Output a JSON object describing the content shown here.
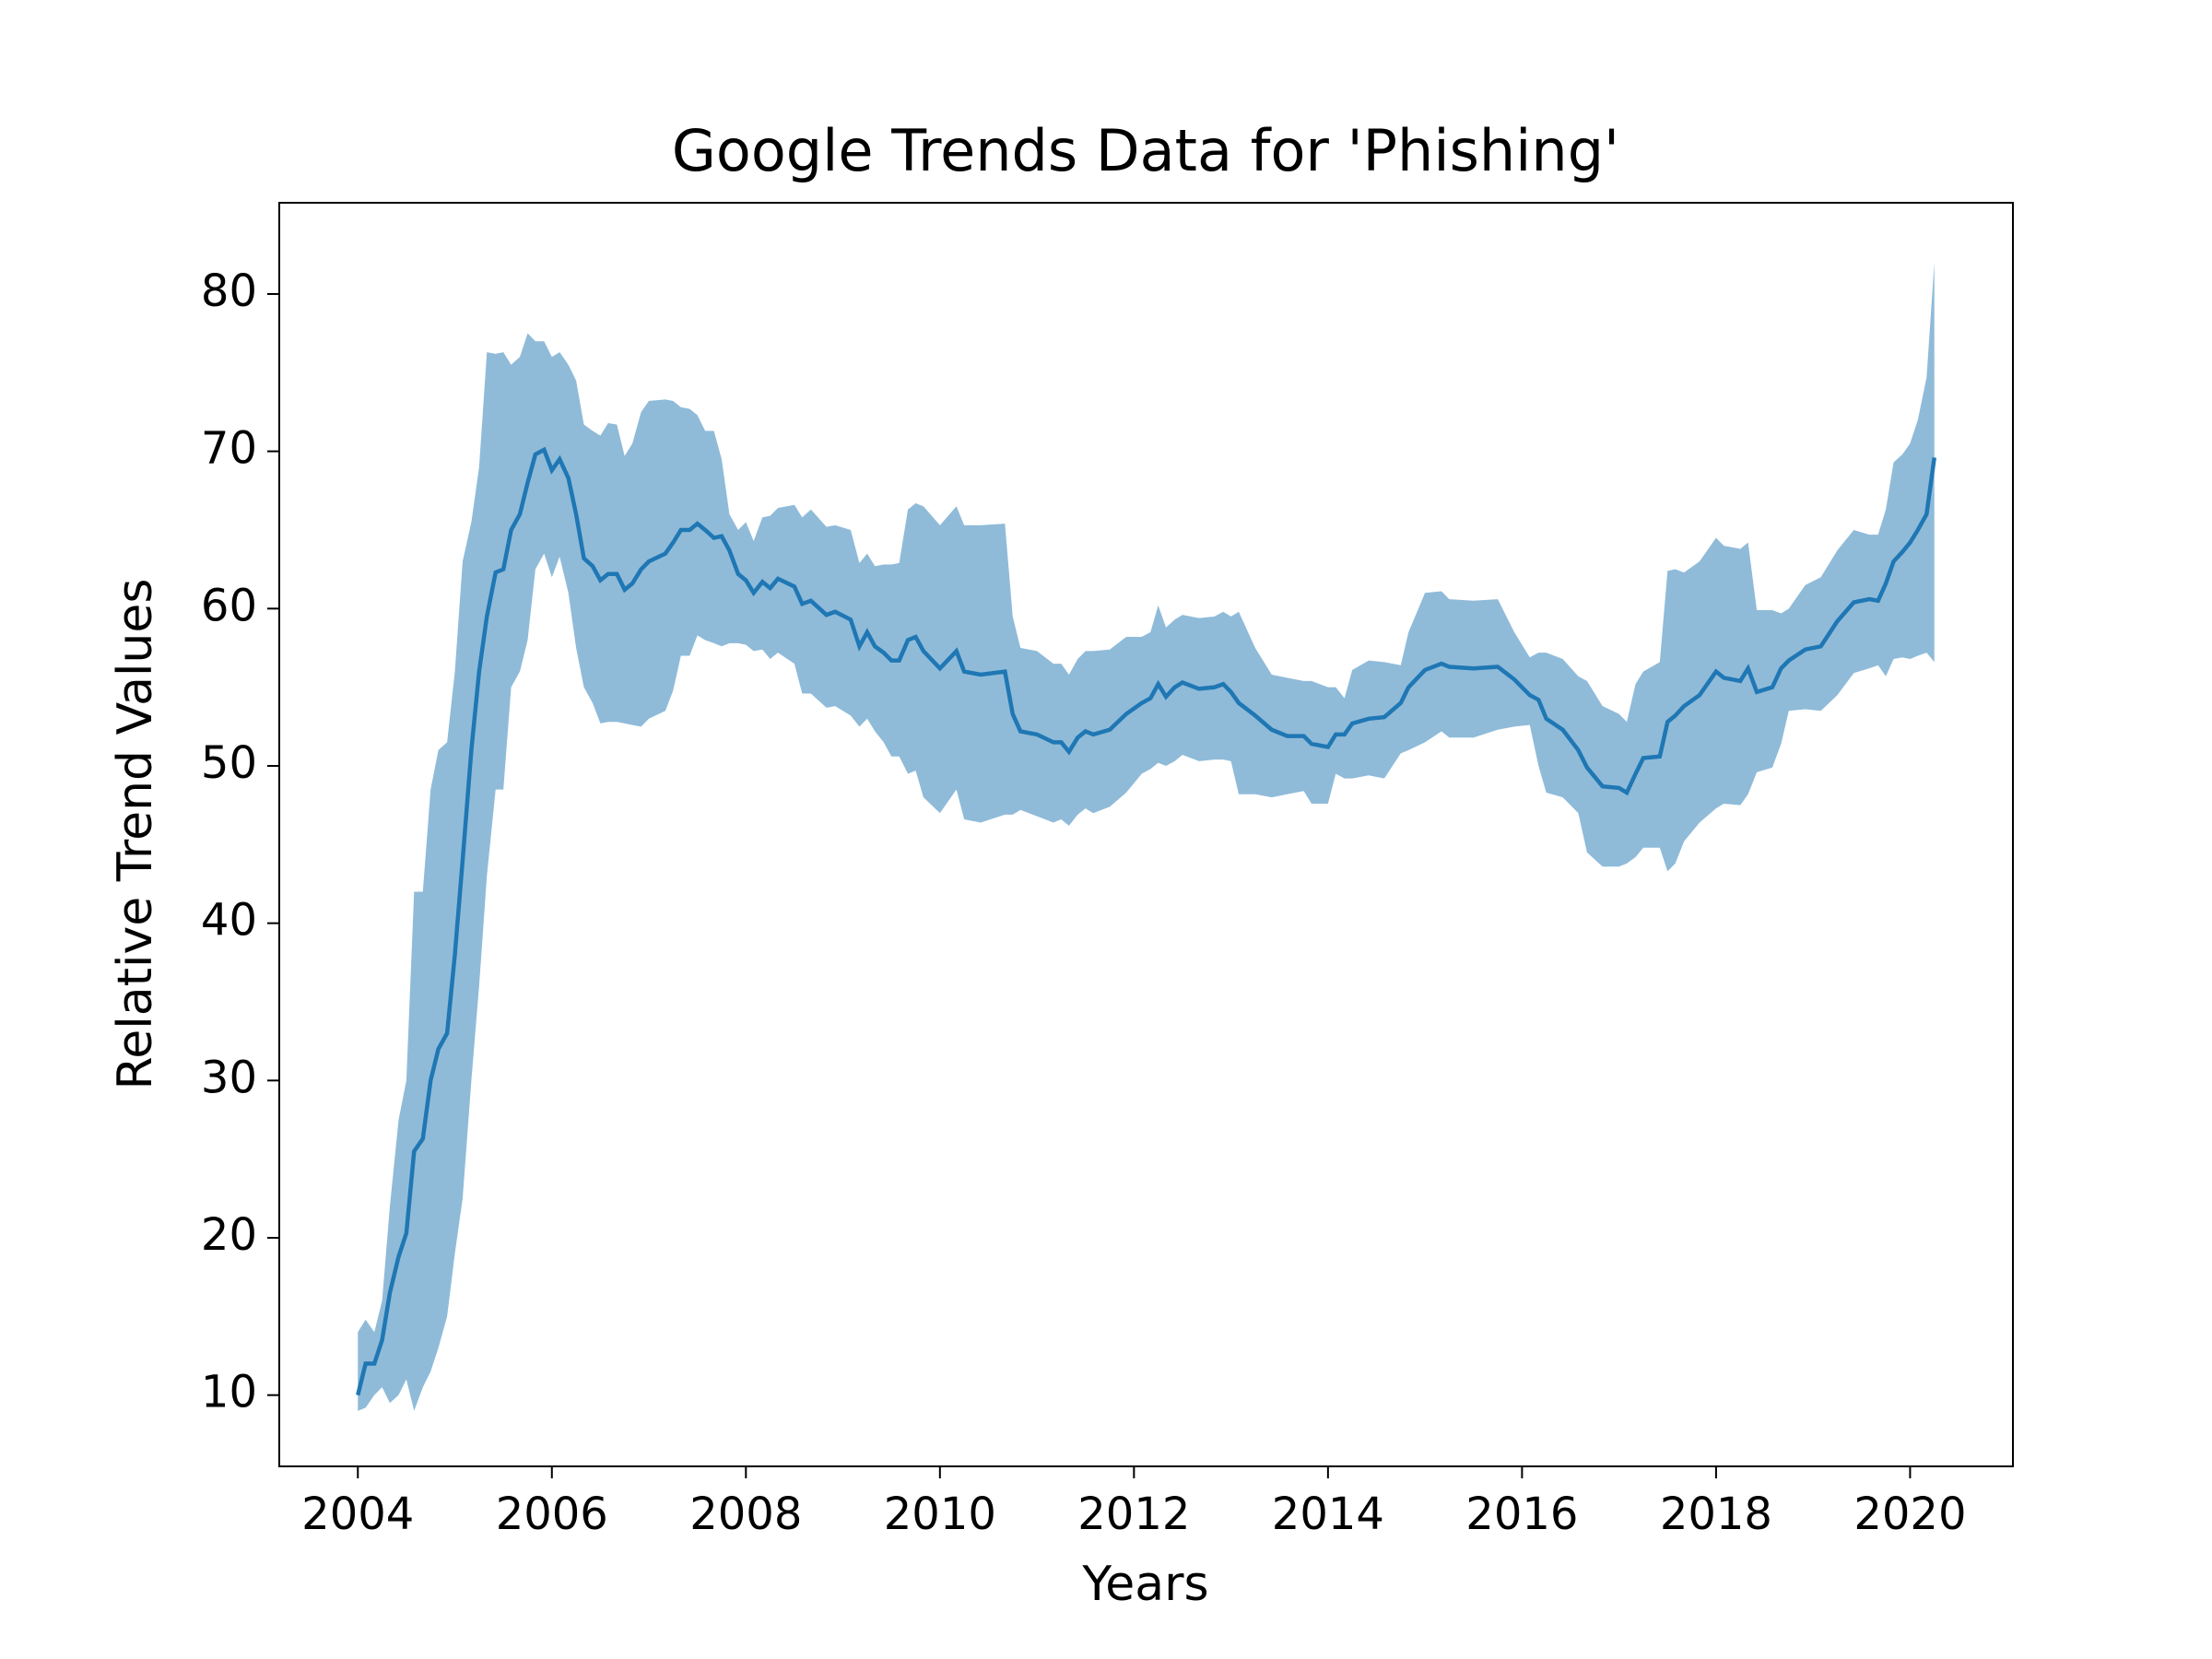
{
  "chart_data": {
    "type": "line_band",
    "title": "Google Trends Data for 'Phishing'",
    "x_label": "Years",
    "y_label": "Relative Trend Values",
    "color": "#1f77b4",
    "band_color": "#8fbbd9",
    "xlim": [
      2003.19,
      2021.06
    ],
    "xticks": [
      2004,
      2006,
      2008,
      2010,
      2012,
      2014,
      2016,
      2018,
      2020
    ],
    "ylim": [
      5.47,
      85.8
    ],
    "yticks": [
      10,
      20,
      30,
      40,
      50,
      60,
      70,
      80
    ],
    "x": [
      2004.0,
      2004.08,
      2004.17,
      2004.25,
      2004.33,
      2004.42,
      2004.5,
      2004.58,
      2004.67,
      2004.75,
      2004.83,
      2004.92,
      2005.0,
      2005.08,
      2005.17,
      2005.25,
      2005.33,
      2005.42,
      2005.5,
      2005.58,
      2005.67,
      2005.75,
      2005.83,
      2005.92,
      2006.0,
      2006.08,
      2006.17,
      2006.25,
      2006.33,
      2006.42,
      2006.5,
      2006.58,
      2006.67,
      2006.75,
      2006.83,
      2006.92,
      2007.0,
      2007.17,
      2007.25,
      2007.33,
      2007.42,
      2007.5,
      2007.58,
      2007.67,
      2007.75,
      2007.83,
      2007.92,
      2008.0,
      2008.08,
      2008.17,
      2008.25,
      2008.33,
      2008.5,
      2008.58,
      2008.67,
      2008.83,
      2008.92,
      2009.08,
      2009.17,
      2009.25,
      2009.33,
      2009.42,
      2009.5,
      2009.58,
      2009.67,
      2009.75,
      2009.83,
      2010.0,
      2010.17,
      2010.25,
      2010.42,
      2010.67,
      2010.75,
      2010.83,
      2011.0,
      2011.17,
      2011.25,
      2011.33,
      2011.42,
      2011.5,
      2011.58,
      2011.75,
      2011.92,
      2012.08,
      2012.17,
      2012.25,
      2012.33,
      2012.42,
      2012.5,
      2012.67,
      2012.83,
      2012.92,
      2013.0,
      2013.08,
      2013.25,
      2013.42,
      2013.58,
      2013.75,
      2013.83,
      2014.0,
      2014.08,
      2014.17,
      2014.25,
      2014.42,
      2014.58,
      2014.75,
      2014.83,
      2015.0,
      2015.17,
      2015.25,
      2015.5,
      2015.75,
      2015.92,
      2016.08,
      2016.17,
      2016.25,
      2016.42,
      2016.58,
      2016.67,
      2016.83,
      2017.0,
      2017.08,
      2017.17,
      2017.25,
      2017.42,
      2017.5,
      2017.58,
      2017.67,
      2017.83,
      2018.0,
      2018.08,
      2018.25,
      2018.33,
      2018.42,
      2018.58,
      2018.67,
      2018.75,
      2018.92,
      2019.08,
      2019.25,
      2019.42,
      2019.58,
      2019.67,
      2019.75,
      2019.83,
      2019.92,
      2020.0,
      2020.08,
      2020.17,
      2020.25
    ],
    "values": [
      10,
      12,
      12,
      13.5,
      16.5,
      18.8,
      20.3,
      25.5,
      26.3,
      30,
      32,
      33,
      38,
      44,
      51,
      56,
      59.5,
      62.3,
      62.5,
      65,
      66,
      68,
      69.8,
      70.1,
      68.8,
      69.5,
      68.3,
      66,
      63.2,
      62.7,
      61.8,
      62.2,
      62.2,
      61.2,
      61.6,
      62.5,
      63,
      63.5,
      64.2,
      65,
      65,
      65.4,
      65,
      64.5,
      64.6,
      63.7,
      62.2,
      61.8,
      61,
      61.7,
      61.3,
      61.9,
      61.4,
      60.3,
      60.5,
      59.6,
      59.8,
      59.3,
      57.6,
      58.5,
      57.6,
      57.2,
      56.7,
      56.7,
      58,
      58.2,
      57.3,
      56.2,
      57.3,
      56,
      55.8,
      56,
      53.3,
      52.2,
      52,
      51.5,
      51.5,
      50.9,
      51.8,
      52.2,
      52,
      52.3,
      53.3,
      54,
      54.3,
      55.2,
      54.4,
      55,
      55.3,
      54.9,
      55,
      55.2,
      54.7,
      54,
      53.2,
      52.3,
      51.9,
      51.9,
      51.4,
      51.2,
      52,
      52,
      52.7,
      53,
      53.1,
      54,
      55,
      56.1,
      56.5,
      56.3,
      56.2,
      56.3,
      55.5,
      54.5,
      54.2,
      53,
      52.3,
      51,
      49.9,
      48.7,
      48.6,
      48.3,
      49.5,
      50.5,
      50.6,
      52.8,
      53.2,
      53.8,
      54.5,
      56,
      55.6,
      55.4,
      56.2,
      54.7,
      55,
      56.2,
      56.7,
      57.4,
      57.6,
      59.2,
      60.4,
      60.6,
      60.5,
      61.6,
      63,
      63.6,
      64.2,
      65,
      66,
      69.6
    ],
    "band_lower": [
      9,
      9.2,
      10,
      10.5,
      9.5,
      10,
      11,
      9,
      10.5,
      11.5,
      13,
      15,
      19,
      22.5,
      30,
      36,
      43,
      48.5,
      48.5,
      55,
      56,
      58,
      62.5,
      63.5,
      62,
      63.3,
      61,
      57.5,
      55,
      54,
      52.7,
      52.8,
      52.8,
      52.7,
      52.6,
      52.5,
      53,
      53.5,
      54.8,
      57,
      57,
      58.3,
      58,
      57.8,
      57.6,
      57.8,
      57.8,
      57.7,
      57.3,
      57.4,
      56.8,
      57.2,
      56.5,
      54.6,
      54.6,
      53.7,
      53.8,
      53.2,
      52.5,
      53,
      52.2,
      51.5,
      50.6,
      50.6,
      49.5,
      49.7,
      48,
      47,
      48.5,
      46.6,
      46.4,
      46.9,
      46.9,
      47.2,
      46.8,
      46.4,
      46.6,
      46.2,
      46.9,
      47.3,
      47,
      47.4,
      48.3,
      49.5,
      49.8,
      50.2,
      50,
      50.3,
      50.7,
      50.3,
      50.4,
      50.4,
      50.3,
      48.2,
      48.2,
      48,
      48.2,
      48.4,
      47.6,
      47.6,
      49.5,
      49.2,
      49.2,
      49.4,
      49.2,
      50.8,
      51,
      51.5,
      52.2,
      51.8,
      51.8,
      52.3,
      52.5,
      52.6,
      50,
      48.3,
      48,
      47,
      44.5,
      43.6,
      43.6,
      43.8,
      44.2,
      44.8,
      44.8,
      43.3,
      43.8,
      45.2,
      46.4,
      47.3,
      47.6,
      47.5,
      48.2,
      49.6,
      49.9,
      51.4,
      53.5,
      53.6,
      53.5,
      54.5,
      55.9,
      56.2,
      56.4,
      55.7,
      56.8,
      56.9,
      56.8,
      57,
      57.2,
      56.6
    ],
    "band_upper": [
      14,
      14.8,
      14,
      16,
      22,
      27.5,
      30,
      42,
      42,
      48.5,
      51,
      51.5,
      56,
      63,
      65.5,
      69,
      76.3,
      76.2,
      76.3,
      75.5,
      76,
      77.5,
      77,
      77,
      76,
      76.3,
      75.5,
      74.5,
      71.7,
      71.3,
      71,
      71.8,
      71.7,
      69.7,
      70.5,
      72.5,
      73.2,
      73.3,
      73.2,
      72.8,
      72.7,
      72.3,
      71.3,
      71.3,
      69.5,
      66,
      65,
      65.5,
      64.3,
      65.8,
      65.9,
      66.4,
      66.6,
      65.8,
      66.3,
      65.2,
      65.3,
      65,
      62.9,
      63.5,
      62.7,
      62.8,
      62.8,
      62.9,
      66.3,
      66.7,
      66.5,
      65.3,
      66.5,
      65.3,
      65.3,
      65.4,
      59.5,
      57.5,
      57.3,
      56.5,
      56.5,
      55.8,
      56.8,
      57.3,
      57.3,
      57.4,
      58.2,
      58.2,
      58.5,
      60.2,
      58.8,
      59.3,
      59.6,
      59.4,
      59.5,
      59.8,
      59.5,
      59.8,
      57.5,
      55.8,
      55.6,
      55.4,
      55.4,
      55,
      55,
      54.3,
      56.1,
      56.7,
      56.6,
      56.4,
      58.5,
      61,
      61.1,
      60.6,
      60.5,
      60.6,
      58.5,
      56.9,
      57.2,
      57.2,
      56.8,
      55.7,
      55.4,
      53.8,
      53.3,
      52.8,
      55.2,
      56,
      56.6,
      62.4,
      62.5,
      62.3,
      63,
      64.5,
      64,
      63.8,
      64.2,
      59.9,
      59.9,
      59.7,
      60,
      61.5,
      62,
      63.7,
      65,
      64.7,
      64.7,
      66.3,
      69.3,
      69.8,
      70.5,
      72,
      74.7,
      82
    ]
  }
}
